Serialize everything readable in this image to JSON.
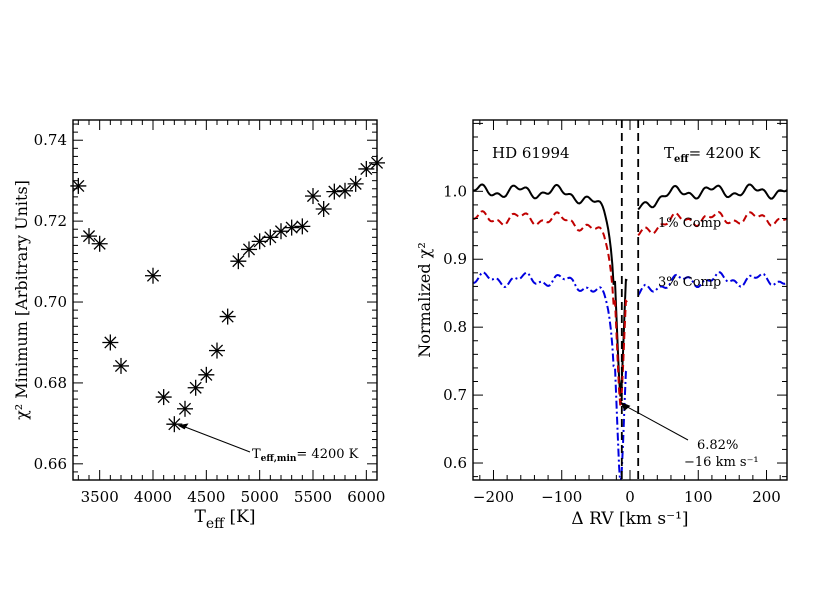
{
  "chart_data": [
    {
      "type": "scatter",
      "marker": "asterisk",
      "xlabel_main": "T",
      "xlabel_sub": "eff",
      "xlabel_unit": "[K]",
      "ylabel": "χ² Minimum [Arbitrary Units]",
      "xlim": [
        3250,
        6100
      ],
      "ylim": [
        0.656,
        0.745
      ],
      "xticks": [
        3500,
        4000,
        4500,
        5000,
        5500,
        6000
      ],
      "yticks": [
        0.66,
        0.68,
        0.7,
        0.72,
        0.74
      ],
      "ytick_labels": [
        "0.66",
        "0.68",
        "0.70",
        "0.72",
        "0.74"
      ],
      "points": [
        {
          "x": 3300,
          "y": 0.7287
        },
        {
          "x": 3400,
          "y": 0.7163
        },
        {
          "x": 3500,
          "y": 0.7144
        },
        {
          "x": 3600,
          "y": 0.69
        },
        {
          "x": 3700,
          "y": 0.6842
        },
        {
          "x": 4000,
          "y": 0.7065
        },
        {
          "x": 4100,
          "y": 0.6765
        },
        {
          "x": 4200,
          "y": 0.6698
        },
        {
          "x": 4300,
          "y": 0.6736
        },
        {
          "x": 4400,
          "y": 0.6788
        },
        {
          "x": 4500,
          "y": 0.682
        },
        {
          "x": 4600,
          "y": 0.688
        },
        {
          "x": 4700,
          "y": 0.6964
        },
        {
          "x": 4800,
          "y": 0.7101
        },
        {
          "x": 4900,
          "y": 0.713
        },
        {
          "x": 5000,
          "y": 0.715
        },
        {
          "x": 5100,
          "y": 0.716
        },
        {
          "x": 5200,
          "y": 0.7175
        },
        {
          "x": 5300,
          "y": 0.7184
        },
        {
          "x": 5400,
          "y": 0.7187
        },
        {
          "x": 5500,
          "y": 0.7262
        },
        {
          "x": 5600,
          "y": 0.723
        },
        {
          "x": 5700,
          "y": 0.7273
        },
        {
          "x": 5800,
          "y": 0.7275
        },
        {
          "x": 5900,
          "y": 0.7292
        },
        {
          "x": 6000,
          "y": 0.7329
        },
        {
          "x": 6100,
          "y": 0.7344
        }
      ],
      "annotation": {
        "text_main": "T",
        "text_sub": "eff,min",
        "text_rest": "= 4200 K",
        "points_to": {
          "x": 4230,
          "y": 0.6695
        }
      }
    },
    {
      "type": "line",
      "xlabel": "Δ RV [km s⁻¹]",
      "ylabel": "Normalized χ²",
      "xlim": [
        -230,
        230
      ],
      "ylim": [
        0.575,
        1.105
      ],
      "xticks": [
        -200,
        -100,
        0,
        100,
        200
      ],
      "xtick_labels": [
        "−200",
        "−100",
        "0",
        "100",
        "200"
      ],
      "yticks": [
        0.6,
        0.7,
        0.8,
        0.9,
        1.0
      ],
      "ytick_labels": [
        "0.6",
        "0.7",
        "0.8",
        "0.9",
        "1.0"
      ],
      "star_label": "HD 61994",
      "teff_label": {
        "main": "T",
        "sub": "eff",
        "rest": "= 4200 K"
      },
      "vlines": [
        -12,
        12
      ],
      "gap": [
        -4,
        12
      ],
      "series": [
        {
          "name": "",
          "style": "solid",
          "color": "#000000",
          "base": 1.0,
          "min": 0.7046
        },
        {
          "name": "1% Comp",
          "style": "dashed",
          "color": "#c00000",
          "base": 0.96,
          "min": 0.69
        },
        {
          "name": "3% Comp",
          "style": "dashdot",
          "color": "#0000e0",
          "base": 0.87,
          "min": 0.575
        }
      ],
      "min_annotation": {
        "line1": "6.82%",
        "line2": "−16 km s⁻¹",
        "points_to": {
          "x": -14,
          "y": 0.69
        }
      }
    }
  ]
}
